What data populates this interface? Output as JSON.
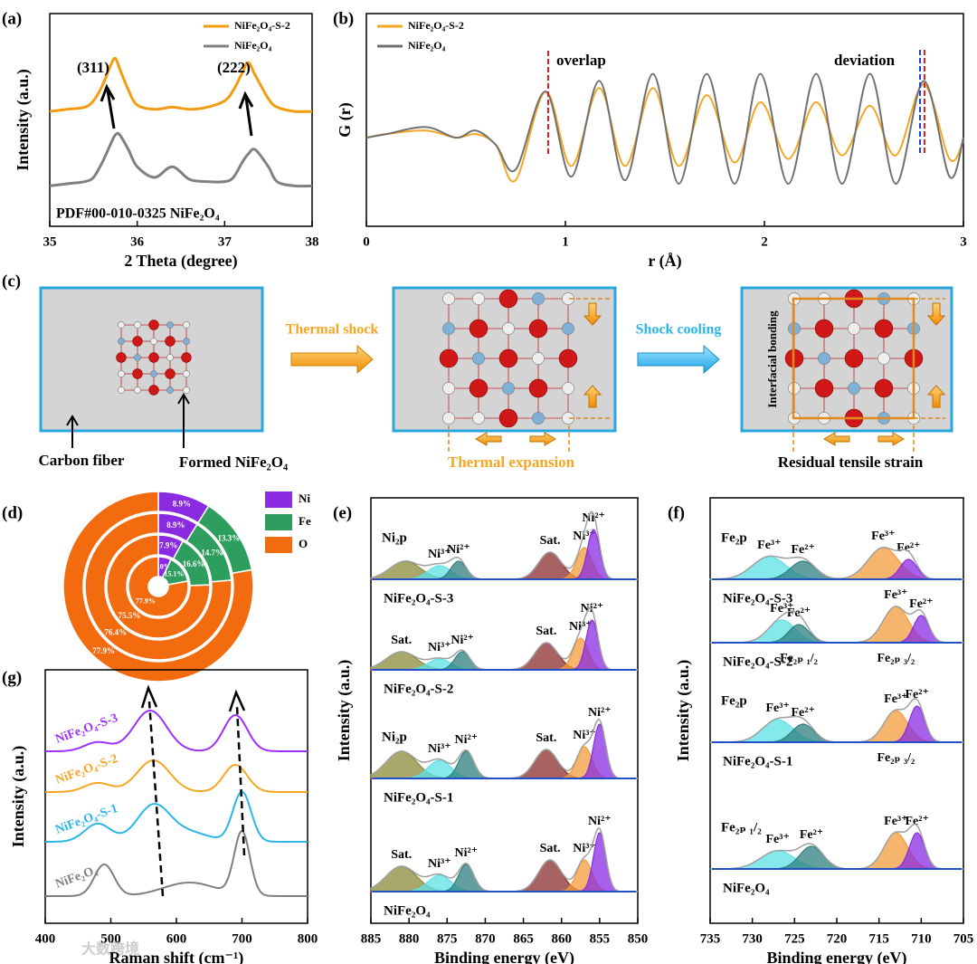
{
  "chart_data": [
    {
      "type": "line",
      "panel_label": "(a)",
      "xlabel": "2 Theta (degree)",
      "ylabel": "Intensity (a.u.)",
      "xlim": [
        35,
        38
      ],
      "xticks": [
        35,
        36,
        37,
        38
      ],
      "ylim": [
        0,
        10
      ],
      "legend": "upper right",
      "annotations": [
        "(311)",
        "(222)",
        "PDF#00-010-0325 NiFe₂O₄"
      ],
      "x": [
        35.0,
        35.2,
        35.4,
        35.5,
        35.6,
        35.7,
        35.75,
        35.8,
        35.9,
        36.0,
        36.2,
        36.4,
        36.6,
        36.8,
        37.0,
        37.1,
        37.2,
        37.27,
        37.35,
        37.5,
        37.6,
        37.8,
        38.0
      ],
      "series": [
        {
          "name": "NiFe₂O₄-S-2",
          "color": "#f39c12",
          "values": [
            5.4,
            5.5,
            5.6,
            5.9,
            6.6,
            7.6,
            7.9,
            7.4,
            6.4,
            5.7,
            5.5,
            5.6,
            5.5,
            5.6,
            5.9,
            6.4,
            7.2,
            7.7,
            7.1,
            6.0,
            5.6,
            5.4,
            5.4
          ]
        },
        {
          "name": "NiFe₂O₄",
          "color": "#808080",
          "values": [
            1.9,
            2.0,
            2.1,
            2.3,
            3.0,
            3.9,
            4.3,
            4.3,
            3.6,
            2.8,
            2.3,
            2.8,
            2.2,
            2.1,
            2.1,
            2.3,
            3.0,
            3.4,
            3.6,
            2.8,
            2.1,
            1.9,
            1.9
          ]
        }
      ]
    },
    {
      "type": "line",
      "panel_label": "(b)",
      "xlabel": "r (Å)",
      "ylabel": "G (r)",
      "xlim": [
        0,
        3
      ],
      "xticks": [
        0,
        1,
        2,
        3
      ],
      "ylim": [
        -3,
        3
      ],
      "legend": "upper left",
      "annotations": [
        "overlap",
        "deviation"
      ],
      "x": [
        0,
        0.1,
        0.3,
        0.45,
        0.55,
        0.65,
        0.75,
        0.9,
        1.03,
        1.17,
        1.3,
        1.44,
        1.57,
        1.71,
        1.85,
        1.98,
        2.12,
        2.26,
        2.39,
        2.53,
        2.66,
        2.8,
        2.93,
        3.0
      ],
      "series": [
        {
          "name": "NiFe₂O₄-S-2",
          "color": "#f5a623",
          "values": [
            -0.5,
            -0.4,
            -0.3,
            -0.5,
            -0.4,
            -0.7,
            -1.7,
            0.8,
            -1.3,
            0.9,
            -1.3,
            0.9,
            -1.3,
            0.7,
            -1.2,
            0.5,
            -1.1,
            0.5,
            -1.0,
            0.4,
            -1.0,
            1.0,
            -1.1,
            -0.6
          ]
        },
        {
          "name": "NiFe₂O₄",
          "color": "#707070",
          "values": [
            -0.5,
            -0.4,
            -0.2,
            -0.5,
            -0.3,
            -0.7,
            -1.4,
            0.8,
            -1.6,
            1.1,
            -1.7,
            1.3,
            -1.8,
            1.3,
            -1.8,
            1.3,
            -1.8,
            1.3,
            -1.8,
            1.3,
            -1.8,
            1.1,
            -1.6,
            -0.5
          ]
        }
      ]
    },
    {
      "type": "donut",
      "panel_label": "(d)",
      "categories": [
        "Ni",
        "Fe",
        "O"
      ],
      "colors": [
        "#8a2be2",
        "#2e9e5e",
        "#f26b0f"
      ],
      "rings": [
        {
          "values": [
            8.9,
            13.3,
            77.9
          ],
          "value_labels": [
            "8.9%",
            "13.3%",
            "77.9%"
          ]
        },
        {
          "values": [
            8.9,
            14.7,
            76.4
          ],
          "value_labels": [
            "8.9%",
            "14.7%",
            "76.4%"
          ]
        },
        {
          "values": [
            7.9,
            16.6,
            75.5
          ],
          "value_labels": [
            "7.9%",
            "16.6%",
            "75.5%"
          ]
        },
        {
          "values": [
            7.0,
            15.1,
            77.9
          ],
          "value_labels": [
            "7.0%",
            "15.1%",
            "77.9%"
          ]
        }
      ]
    },
    {
      "type": "xps",
      "panel_label": "(e)",
      "xlabel": "Binding energy (eV)",
      "ylabel": "Intensity (a.u.)",
      "xlim": [
        885,
        850
      ],
      "xticks": [
        885,
        880,
        875,
        870,
        865,
        860,
        855,
        850
      ],
      "ylim": [
        0,
        47
      ],
      "spectra": [
        {
          "name": "NiFe₂O₄-S-3",
          "title": "Ni₂p",
          "offset": 38,
          "peaks": [
            {
              "center": 880.5,
              "height": 2.0,
              "width": 2.0,
              "color": "#8b8b3a"
            },
            {
              "center": 876,
              "height": 1.5,
              "width": 1.5,
              "color": "#5ce1e6",
              "label": "Ni³⁺"
            },
            {
              "center": 873.5,
              "height": 2.0,
              "width": 1.0,
              "color": "#2f7f7f",
              "label": "Ni²⁺"
            },
            {
              "center": 861.5,
              "height": 3.0,
              "width": 1.5,
              "color": "#8b2e2e",
              "label": "Sat."
            },
            {
              "center": 857,
              "height": 3.5,
              "width": 1.0,
              "color": "#f39c3c",
              "label": "Ni³⁺"
            },
            {
              "center": 855.8,
              "height": 5.5,
              "width": 0.8,
              "color": "#8a2be2",
              "label": "Ni²⁺"
            }
          ]
        },
        {
          "name": "NiFe₂O₄-S-2",
          "offset": 28,
          "peaks": [
            {
              "center": 881,
              "height": 2.0,
              "width": 2.0,
              "color": "#8b8b3a",
              "label": "Sat."
            },
            {
              "center": 876,
              "height": 1.2,
              "width": 1.5,
              "color": "#5ce1e6",
              "label": "Ni³⁺"
            },
            {
              "center": 873,
              "height": 2.0,
              "width": 1.0,
              "color": "#2f7f7f",
              "label": "Ni²⁺"
            },
            {
              "center": 862,
              "height": 3.0,
              "width": 1.5,
              "color": "#8b2e2e",
              "label": "Sat."
            },
            {
              "center": 857.5,
              "height": 3.5,
              "width": 1.0,
              "color": "#f39c3c",
              "label": "Ni³⁺"
            },
            {
              "center": 856,
              "height": 5.5,
              "width": 0.8,
              "color": "#8a2be2",
              "label": "Ni²⁺"
            }
          ]
        },
        {
          "name": "NiFe₂O₄-S-1",
          "title": "Ni₂p",
          "offset": 16,
          "peaks": [
            {
              "center": 881,
              "height": 3.0,
              "width": 2.0,
              "color": "#8b8b3a"
            },
            {
              "center": 876,
              "height": 2.0,
              "width": 1.5,
              "color": "#5ce1e6",
              "label": "Ni³⁺"
            },
            {
              "center": 872.5,
              "height": 3.0,
              "width": 1.0,
              "color": "#2f7f7f",
              "label": "Ni²⁺"
            },
            {
              "center": 862,
              "height": 3.2,
              "width": 1.5,
              "color": "#8b2e2e",
              "label": "Sat."
            },
            {
              "center": 857,
              "height": 3.5,
              "width": 1.0,
              "color": "#f39c3c",
              "label": "Ni³⁺"
            },
            {
              "center": 855,
              "height": 6.0,
              "width": 0.8,
              "color": "#8a2be2",
              "label": "Ni²⁺"
            }
          ]
        },
        {
          "name": "NiFe₂O₄",
          "offset": 3.5,
          "peaks": [
            {
              "center": 881,
              "height": 2.8,
              "width": 2.0,
              "color": "#8b8b3a",
              "label": "Sat."
            },
            {
              "center": 876,
              "height": 1.8,
              "width": 1.5,
              "color": "#5ce1e6",
              "label": "Ni³⁺"
            },
            {
              "center": 872.5,
              "height": 3.0,
              "width": 1.0,
              "color": "#2f7f7f",
              "label": "Ni²⁺"
            },
            {
              "center": 861.5,
              "height": 3.5,
              "width": 1.5,
              "color": "#8b2e2e",
              "label": "Sat."
            },
            {
              "center": 857,
              "height": 3.5,
              "width": 1.0,
              "color": "#f39c3c",
              "label": "Ni³⁺"
            },
            {
              "center": 855,
              "height": 6.5,
              "width": 0.8,
              "color": "#8a2be2",
              "label": "Ni²⁺"
            }
          ]
        }
      ]
    },
    {
      "type": "xps",
      "panel_label": "(f)",
      "xlabel": "Binding energy (eV)",
      "ylabel": "Intensity (a.u.)",
      "xlim": [
        735,
        705
      ],
      "xticks": [
        735,
        730,
        725,
        720,
        715,
        710,
        705
      ],
      "ylim": [
        0,
        47
      ],
      "spectra": [
        {
          "name": "NiFe₂O₄-S-3",
          "title": "Fe₂p",
          "offset": 38,
          "peaks": [
            {
              "center": 728,
              "height": 2.5,
              "width": 2.0,
              "color": "#5ce1e6",
              "label": "Fe³⁺"
            },
            {
              "center": 724,
              "height": 2.0,
              "width": 1.5,
              "color": "#2f7f7f",
              "label": "Fe²⁺"
            },
            {
              "center": 714.5,
              "height": 3.5,
              "width": 1.8,
              "color": "#f39c3c",
              "label": "Fe³⁺"
            },
            {
              "center": 711.5,
              "height": 2.2,
              "width": 1.0,
              "color": "#8a2be2",
              "label": "Fe²⁺"
            }
          ]
        },
        {
          "name": "NiFe₂O₄-S-2",
          "offset": 31,
          "peaks": [
            {
              "center": 726.5,
              "height": 2.5,
              "width": 1.6,
              "color": "#5ce1e6",
              "label": "Fe³⁺"
            },
            {
              "center": 724.5,
              "height": 2.0,
              "width": 1.2,
              "color": "#2f7f7f",
              "label": "Fe²⁺",
              "note": "Fe₂ₚ ₁/₂"
            },
            {
              "center": 713,
              "height": 4.0,
              "width": 1.5,
              "color": "#f39c3c",
              "label": "Fe³⁺",
              "note": "Fe₂ₚ ₃/₂"
            },
            {
              "center": 710,
              "height": 3.0,
              "width": 0.9,
              "color": "#8a2be2",
              "label": "Fe²⁺"
            }
          ]
        },
        {
          "name": "NiFe₂O₄-S-1",
          "title": "Fe₂p",
          "offset": 20,
          "peaks": [
            {
              "center": 727,
              "height": 2.5,
              "width": 1.8,
              "color": "#5ce1e6",
              "label": "Fe³⁺"
            },
            {
              "center": 724,
              "height": 2.0,
              "width": 1.3,
              "color": "#2f7f7f",
              "label": "Fe²⁺"
            },
            {
              "center": 713,
              "height": 3.5,
              "width": 1.4,
              "color": "#f39c3c",
              "label": "Fe³⁺",
              "note": "Fe₂ₚ ₃/₂"
            },
            {
              "center": 710.5,
              "height": 4.0,
              "width": 0.9,
              "color": "#8a2be2",
              "label": "Fe²⁺"
            }
          ]
        },
        {
          "name": "NiFe₂O₄",
          "title": "Fe₂ₚ ₁/₂",
          "offset": 6,
          "peaks": [
            {
              "center": 727,
              "height": 2.0,
              "width": 2.0,
              "color": "#5ce1e6",
              "label": "Fe³⁺"
            },
            {
              "center": 723,
              "height": 2.5,
              "width": 1.4,
              "color": "#2f7f7f",
              "label": "Fe²⁺"
            },
            {
              "center": 713,
              "height": 4.0,
              "width": 1.4,
              "color": "#f39c3c",
              "label": "Fe³⁺"
            },
            {
              "center": 710.5,
              "height": 4.0,
              "width": 0.9,
              "color": "#8a2be2",
              "label": "Fe²⁺"
            }
          ]
        }
      ]
    },
    {
      "type": "raman",
      "panel_label": "(g)",
      "xlabel": "Raman shift (cm⁻¹)",
      "ylabel": "Intensity (a.u.)",
      "xlim": [
        400,
        800
      ],
      "xticks": [
        400,
        500,
        600,
        700,
        800
      ],
      "ylim": [
        0,
        28
      ],
      "series": [
        {
          "name": "NiFe₂O₄-S-3",
          "color": "#9b30ff",
          "offset": 19,
          "peaks": [
            {
              "center": 480,
              "height": 1.0,
              "width": 20
            },
            {
              "center": 560,
              "height": 4.5,
              "width": 25
            },
            {
              "center": 690,
              "height": 4.0,
              "width": 18
            }
          ]
        },
        {
          "name": "NiFe₂O₄-S-2",
          "color": "#f5a623",
          "offset": 14.5,
          "peaks": [
            {
              "center": 480,
              "height": 1.0,
              "width": 20
            },
            {
              "center": 565,
              "height": 3.5,
              "width": 25
            },
            {
              "center": 690,
              "height": 3.0,
              "width": 18
            }
          ]
        },
        {
          "name": "NiFe₂O₄-S-1",
          "color": "#29b6e8",
          "offset": 9,
          "peaks": [
            {
              "center": 480,
              "height": 2.0,
              "width": 20
            },
            {
              "center": 565,
              "height": 4.0,
              "width": 25
            },
            {
              "center": 620,
              "height": 1.0,
              "width": 30
            },
            {
              "center": 700,
              "height": 5.5,
              "width": 14
            }
          ]
        },
        {
          "name": "NiFe₂O₄",
          "color": "#7f7f7f",
          "offset": 3,
          "peaks": [
            {
              "center": 490,
              "height": 3.5,
              "width": 15
            },
            {
              "center": 620,
              "height": 1.5,
              "width": 40
            },
            {
              "center": 700,
              "height": 7.0,
              "width": 12
            }
          ]
        }
      ]
    }
  ],
  "diagram": {
    "panel_label": "(c)",
    "carbon_fiber": "Carbon fiber",
    "formed": "Formed NiFe₂O₄",
    "thermal_shock": "Thermal shock",
    "shock_cooling": "Shock cooling",
    "thermal_expansion": "Thermal expansion",
    "interfacial_bonding": "Interfacial bonding",
    "residual_strain": "Residual tensile strain"
  },
  "watermark": "大数跨境"
}
